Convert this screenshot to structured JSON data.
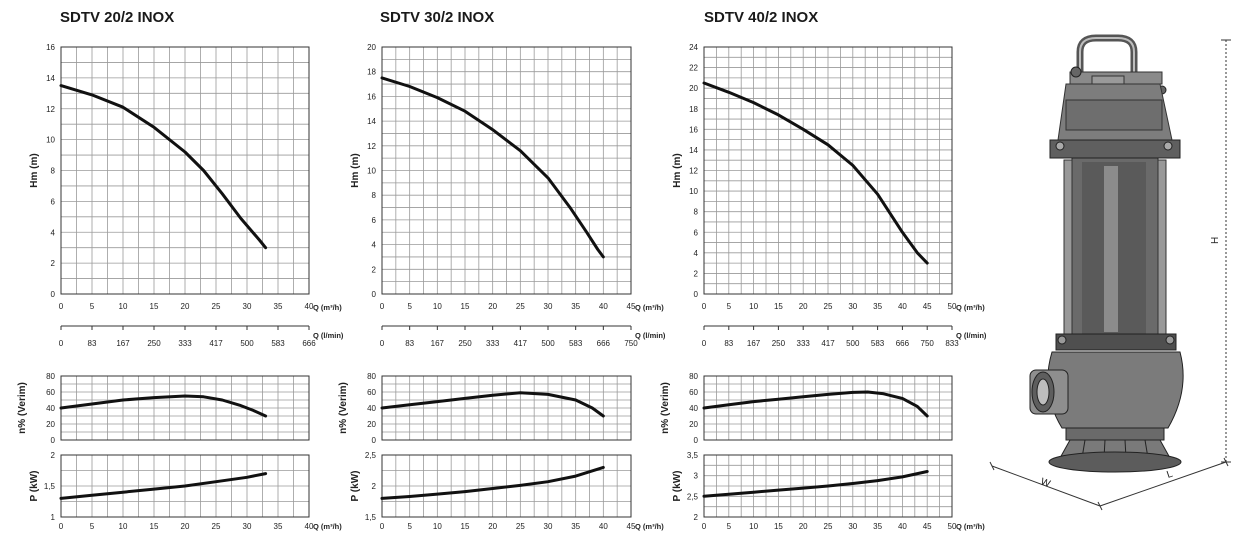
{
  "q_m3h_unit": "Q (m³/h)",
  "q_lmin_unit": "Q (l/min)",
  "dimensions": {
    "height": "H",
    "width": "W",
    "length": "L"
  },
  "colors": {
    "curve": "#111111",
    "grid": "#9a9a9a",
    "pump_body": "#6b6b6b"
  },
  "chart_data": [
    {
      "type": "line",
      "title": "SDTV 20/2 INOX",
      "flow_ticks_m3h": [
        "0",
        "5",
        "10",
        "15",
        "20",
        "25",
        "30",
        "35",
        "40"
      ],
      "flow_ticks_lmin": [
        "0",
        "83",
        "167",
        "250",
        "333",
        "417",
        "500",
        "583",
        "666"
      ],
      "xlim": [
        0,
        40
      ],
      "head": {
        "ylabel": "Hm (m)",
        "ylim": [
          0,
          16
        ],
        "yticks": [
          "0",
          "2",
          "4",
          "6",
          "8",
          "10",
          "12",
          "14",
          "16"
        ],
        "x": [
          0,
          5,
          10,
          15,
          20,
          23,
          26,
          29,
          32,
          33
        ],
        "y": [
          13.5,
          12.9,
          12.1,
          10.8,
          9.2,
          8.0,
          6.5,
          4.9,
          3.5,
          3.0
        ]
      },
      "efficiency": {
        "ylabel": "n% (Verim)",
        "ylim": [
          0,
          80
        ],
        "yticks": [
          "0",
          "20",
          "40",
          "60",
          "80"
        ],
        "x": [
          0,
          5,
          10,
          15,
          20,
          23,
          26,
          29,
          31,
          33
        ],
        "y": [
          40,
          45,
          50,
          53,
          55,
          54,
          50,
          43,
          37,
          30
        ]
      },
      "power": {
        "ylabel": "P (kW)",
        "ylim": [
          1,
          2
        ],
        "yticks": [
          "1",
          "1,5",
          "2"
        ],
        "x": [
          0,
          5,
          10,
          15,
          20,
          25,
          30,
          33
        ],
        "y": [
          1.3,
          1.35,
          1.4,
          1.45,
          1.5,
          1.57,
          1.64,
          1.7
        ]
      }
    },
    {
      "type": "line",
      "title": "SDTV 30/2 INOX",
      "flow_ticks_m3h": [
        "0",
        "5",
        "10",
        "15",
        "20",
        "25",
        "30",
        "35",
        "40",
        "45"
      ],
      "flow_ticks_lmin": [
        "0",
        "83",
        "167",
        "250",
        "333",
        "417",
        "500",
        "583",
        "666",
        "750"
      ],
      "xlim": [
        0,
        45
      ],
      "head": {
        "ylabel": "Hm (m)",
        "ylim": [
          0,
          20
        ],
        "yticks": [
          "0",
          "2",
          "4",
          "6",
          "8",
          "10",
          "12",
          "14",
          "16",
          "18",
          "20"
        ],
        "x": [
          0,
          5,
          10,
          15,
          20,
          25,
          30,
          34,
          37,
          39,
          40
        ],
        "y": [
          17.5,
          16.8,
          15.9,
          14.8,
          13.3,
          11.6,
          9.4,
          7.0,
          5.0,
          3.6,
          3.0
        ]
      },
      "efficiency": {
        "ylabel": "n% (Verim)",
        "ylim": [
          0,
          80
        ],
        "yticks": [
          "0",
          "20",
          "40",
          "60",
          "80"
        ],
        "x": [
          0,
          5,
          10,
          15,
          20,
          25,
          30,
          35,
          38,
          40
        ],
        "y": [
          40,
          44,
          48,
          52,
          56,
          59,
          57,
          50,
          40,
          30
        ]
      },
      "power": {
        "ylabel": "P (kW)",
        "ylim": [
          1.5,
          2.5
        ],
        "yticks": [
          "1,5",
          "2",
          "2,5"
        ],
        "x": [
          0,
          5,
          10,
          15,
          20,
          25,
          30,
          35,
          40
        ],
        "y": [
          1.8,
          1.83,
          1.87,
          1.91,
          1.96,
          2.01,
          2.07,
          2.16,
          2.3
        ]
      }
    },
    {
      "type": "line",
      "title": "SDTV 40/2 INOX",
      "flow_ticks_m3h": [
        "0",
        "5",
        "10",
        "15",
        "20",
        "25",
        "30",
        "35",
        "40",
        "45",
        "50"
      ],
      "flow_ticks_lmin": [
        "0",
        "83",
        "167",
        "250",
        "333",
        "417",
        "500",
        "583",
        "666",
        "750",
        "833"
      ],
      "xlim": [
        0,
        50
      ],
      "head": {
        "ylabel": "Hm (m)",
        "ylim": [
          0,
          24
        ],
        "yticks": [
          "0",
          "2",
          "4",
          "6",
          "8",
          "10",
          "12",
          "14",
          "16",
          "18",
          "20",
          "22",
          "24"
        ],
        "x": [
          0,
          5,
          10,
          15,
          20,
          25,
          30,
          35,
          40,
          43,
          45
        ],
        "y": [
          20.5,
          19.6,
          18.6,
          17.4,
          16.0,
          14.5,
          12.5,
          9.7,
          6.0,
          4.0,
          3.0
        ]
      },
      "efficiency": {
        "ylabel": "n% (Verim)",
        "ylim": [
          0,
          80
        ],
        "yticks": [
          "0",
          "20",
          "40",
          "60",
          "80"
        ],
        "x": [
          0,
          5,
          10,
          15,
          20,
          25,
          30,
          33,
          36,
          40,
          43,
          45
        ],
        "y": [
          40,
          44,
          48,
          51,
          54,
          57,
          59.5,
          60,
          58,
          52,
          42,
          30
        ]
      },
      "power": {
        "ylabel": "P (kW)",
        "ylim": [
          2,
          3.5
        ],
        "yticks": [
          "2",
          "2,5",
          "3",
          "3,5"
        ],
        "x": [
          0,
          5,
          10,
          15,
          20,
          25,
          30,
          35,
          40,
          45
        ],
        "y": [
          2.5,
          2.55,
          2.6,
          2.65,
          2.7,
          2.75,
          2.81,
          2.88,
          2.97,
          3.1
        ]
      }
    }
  ]
}
